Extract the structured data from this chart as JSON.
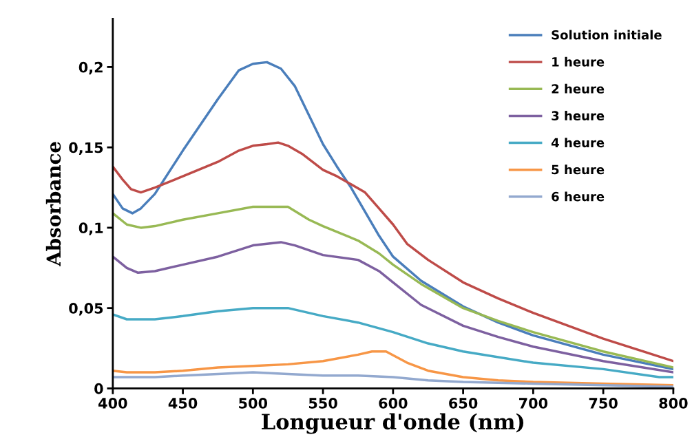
{
  "chart_data": {
    "type": "line",
    "xlabel": "Longueur d'onde (nm)",
    "ylabel": "Absorbance",
    "xlim": [
      400,
      800
    ],
    "xticks": [
      400,
      450,
      500,
      550,
      600,
      650,
      700,
      750,
      800
    ],
    "ylim": [
      0,
      0.23
    ],
    "yticks": [
      {
        "value": 0,
        "label": "0"
      },
      {
        "value": 0.05,
        "label": "0,05"
      },
      {
        "value": 0.1,
        "label": "0,1"
      },
      {
        "value": 0.15,
        "label": "0,15"
      },
      {
        "value": 0.2,
        "label": "0,2"
      }
    ],
    "grid": false,
    "legend": "top right",
    "marker": "none",
    "line_style": "solid",
    "series": [
      {
        "name": "Solution initiale",
        "color": "#4a7ebb",
        "x": [
          400,
          407,
          414,
          420,
          430,
          450,
          475,
          490,
          500,
          510,
          520,
          530,
          540,
          550,
          560,
          570,
          580,
          590,
          600,
          620,
          650,
          675,
          700,
          750,
          800
        ],
        "values": [
          0.121,
          0.112,
          0.109,
          0.112,
          0.121,
          0.148,
          0.18,
          0.198,
          0.202,
          0.203,
          0.199,
          0.188,
          0.17,
          0.152,
          0.138,
          0.125,
          0.11,
          0.095,
          0.082,
          0.067,
          0.051,
          0.041,
          0.033,
          0.021,
          0.012
        ]
      },
      {
        "name": "1 heure",
        "color": "#be4b48",
        "x": [
          400,
          407,
          413,
          420,
          430,
          450,
          475,
          490,
          500,
          510,
          518,
          525,
          535,
          550,
          560,
          570,
          580,
          590,
          600,
          610,
          625,
          650,
          675,
          700,
          750,
          800
        ],
        "values": [
          0.138,
          0.13,
          0.124,
          0.122,
          0.125,
          0.132,
          0.141,
          0.148,
          0.151,
          0.152,
          0.153,
          0.151,
          0.146,
          0.136,
          0.132,
          0.127,
          0.122,
          0.112,
          0.102,
          0.09,
          0.08,
          0.066,
          0.056,
          0.047,
          0.031,
          0.017
        ]
      },
      {
        "name": "2 heure",
        "color": "#98b954",
        "x": [
          400,
          410,
          420,
          430,
          450,
          475,
          500,
          525,
          540,
          550,
          575,
          590,
          600,
          620,
          650,
          675,
          700,
          750,
          800
        ],
        "values": [
          0.109,
          0.102,
          0.1,
          0.101,
          0.105,
          0.109,
          0.113,
          0.113,
          0.105,
          0.101,
          0.092,
          0.084,
          0.077,
          0.065,
          0.05,
          0.042,
          0.035,
          0.023,
          0.013
        ]
      },
      {
        "name": "3 heure",
        "color": "#7d60a0",
        "x": [
          400,
          410,
          418,
          430,
          450,
          475,
          500,
          520,
          530,
          550,
          575,
          590,
          600,
          620,
          650,
          675,
          700,
          750,
          800
        ],
        "values": [
          0.082,
          0.075,
          0.072,
          0.073,
          0.077,
          0.082,
          0.089,
          0.091,
          0.089,
          0.083,
          0.08,
          0.073,
          0.066,
          0.052,
          0.039,
          0.032,
          0.026,
          0.017,
          0.01
        ]
      },
      {
        "name": "4 heure",
        "color": "#46aac5",
        "x": [
          400,
          410,
          430,
          450,
          475,
          500,
          525,
          550,
          575,
          600,
          625,
          650,
          700,
          750,
          790,
          800
        ],
        "values": [
          0.046,
          0.043,
          0.043,
          0.045,
          0.048,
          0.05,
          0.05,
          0.045,
          0.041,
          0.035,
          0.028,
          0.023,
          0.016,
          0.012,
          0.007,
          0.007
        ]
      },
      {
        "name": "5 heure",
        "color": "#f79646",
        "x": [
          400,
          410,
          430,
          450,
          475,
          500,
          525,
          550,
          575,
          585,
          595,
          610,
          625,
          650,
          675,
          700,
          750,
          800
        ],
        "values": [
          0.011,
          0.01,
          0.01,
          0.011,
          0.013,
          0.014,
          0.015,
          0.017,
          0.021,
          0.023,
          0.023,
          0.016,
          0.011,
          0.007,
          0.005,
          0.004,
          0.003,
          0.002
        ]
      },
      {
        "name": "6 heure",
        "color": "#93a9cf",
        "x": [
          400,
          430,
          450,
          475,
          500,
          525,
          550,
          575,
          600,
          625,
          650,
          700,
          750,
          800
        ],
        "values": [
          0.007,
          0.007,
          0.008,
          0.009,
          0.01,
          0.009,
          0.008,
          0.008,
          0.007,
          0.005,
          0.004,
          0.003,
          0.002,
          0.001
        ]
      }
    ]
  }
}
